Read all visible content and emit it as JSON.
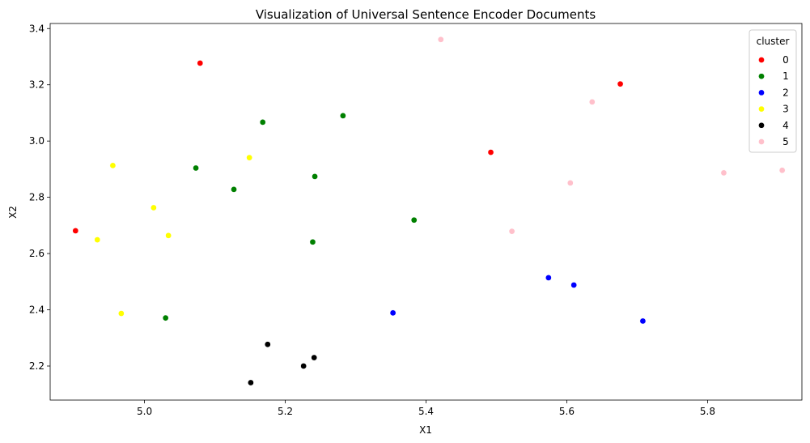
{
  "chart_data": {
    "type": "scatter",
    "title": "Visualization of Universal Sentence Encoder Documents",
    "xlabel": "X1",
    "ylabel": "X2",
    "xlim": [
      4.866,
      5.934
    ],
    "ylim": [
      2.079,
      3.418
    ],
    "xticks": [
      5.0,
      5.2,
      5.4,
      5.6,
      5.8
    ],
    "xtick_labels": [
      "5.0",
      "5.2",
      "5.4",
      "5.6",
      "5.8"
    ],
    "yticks": [
      2.2,
      2.4,
      2.6,
      2.8,
      3.0,
      3.2,
      3.4
    ],
    "ytick_labels": [
      "2.2",
      "2.4",
      "2.6",
      "2.8",
      "3.0",
      "3.2",
      "3.4"
    ],
    "grid": false,
    "legend": {
      "title": "cluster",
      "placement": "top-right"
    },
    "series": [
      {
        "name": "0",
        "color": "#ff0000",
        "points": [
          [
            5.079,
            3.277
          ],
          [
            4.902,
            2.681
          ],
          [
            5.492,
            2.96
          ],
          [
            5.676,
            3.203
          ]
        ]
      },
      {
        "name": "1",
        "color": "#008000",
        "points": [
          [
            5.168,
            3.067
          ],
          [
            5.282,
            3.09
          ],
          [
            5.073,
            2.904
          ],
          [
            5.127,
            2.828
          ],
          [
            5.242,
            2.874
          ],
          [
            5.383,
            2.719
          ],
          [
            5.239,
            2.641
          ],
          [
            5.03,
            2.371
          ]
        ]
      },
      {
        "name": "2",
        "color": "#0000ff",
        "points": [
          [
            5.574,
            2.514
          ],
          [
            5.61,
            2.488
          ],
          [
            5.353,
            2.389
          ],
          [
            5.708,
            2.36
          ]
        ]
      },
      {
        "name": "3",
        "color": "#ffff00",
        "points": [
          [
            4.955,
            2.913
          ],
          [
            5.149,
            2.941
          ],
          [
            5.013,
            2.763
          ],
          [
            4.933,
            2.649
          ],
          [
            5.034,
            2.664
          ],
          [
            4.967,
            2.387
          ]
        ]
      },
      {
        "name": "4",
        "color": "#000000",
        "points": [
          [
            5.175,
            2.277
          ],
          [
            5.241,
            2.23
          ],
          [
            5.226,
            2.2
          ],
          [
            5.151,
            2.141
          ]
        ]
      },
      {
        "name": "5",
        "color": "#ffc0cb",
        "points": [
          [
            5.421,
            3.361
          ],
          [
            5.636,
            3.139
          ],
          [
            5.605,
            2.851
          ],
          [
            5.522,
            2.679
          ],
          [
            5.823,
            2.887
          ],
          [
            5.906,
            2.896
          ]
        ]
      }
    ]
  }
}
